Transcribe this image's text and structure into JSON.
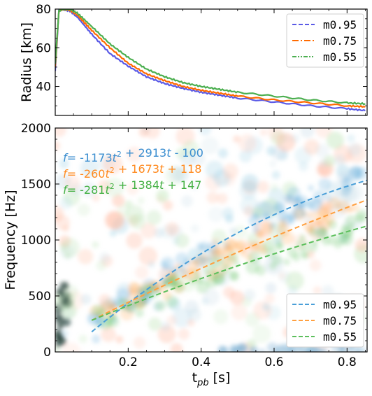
{
  "chart_data": [
    {
      "type": "line",
      "ylabel": "Radius [km]",
      "xlim": [
        0.0,
        0.855
      ],
      "ylim": [
        25,
        80
      ],
      "yticks": [
        40,
        60,
        80
      ],
      "xticks": [
        0.2,
        0.4,
        0.6,
        0.8
      ],
      "show_xtick_labels": false,
      "legend_position": "top-right",
      "series": [
        {
          "name": "m0.95",
          "color": "#5a5ae6",
          "dash": "6,3",
          "x": [
            0.0,
            0.01,
            0.02,
            0.04,
            0.06,
            0.1,
            0.15,
            0.2,
            0.25,
            0.3,
            0.35,
            0.4,
            0.45,
            0.5,
            0.6,
            0.7,
            0.8,
            0.85
          ],
          "y": [
            48,
            79,
            80,
            79,
            76,
            67,
            57,
            50.5,
            45,
            41.5,
            39,
            37,
            35.5,
            34,
            32,
            30,
            28.5,
            27.5
          ]
        },
        {
          "name": "m0.75",
          "color": "#ff6a00",
          "dash": "9,3,2,3",
          "x": [
            0.0,
            0.01,
            0.02,
            0.04,
            0.06,
            0.1,
            0.15,
            0.2,
            0.25,
            0.3,
            0.35,
            0.4,
            0.45,
            0.5,
            0.6,
            0.7,
            0.8,
            0.85
          ],
          "y": [
            50,
            79,
            80,
            79.5,
            77,
            69,
            60,
            52,
            46.5,
            43,
            40,
            38,
            36.5,
            35,
            33,
            31.5,
            30,
            29.5
          ]
        },
        {
          "name": "m0.55",
          "color": "#4caf50",
          "dash": "6,2,2,2,2,2",
          "x": [
            0.0,
            0.01,
            0.02,
            0.04,
            0.06,
            0.1,
            0.15,
            0.2,
            0.25,
            0.3,
            0.35,
            0.4,
            0.45,
            0.5,
            0.6,
            0.7,
            0.8,
            0.85
          ],
          "y": [
            52,
            79,
            80,
            80,
            78,
            71,
            62,
            55,
            49,
            45,
            42,
            40,
            38.5,
            37,
            35,
            33,
            31.5,
            31
          ]
        }
      ]
    },
    {
      "type": "line",
      "xlabel": "t_pb [s]",
      "ylabel": "Frequency [Hz]",
      "xlim": [
        0.0,
        0.855
      ],
      "ylim": [
        0,
        2000
      ],
      "yticks": [
        0,
        500,
        1000,
        1500,
        2000
      ],
      "xticks": [
        0.2,
        0.4,
        0.6,
        0.8
      ],
      "legend_position": "lower-right",
      "annotations": [
        {
          "text": "f= -1173t² + 2913t - 100",
          "color": "#3b8ed0"
        },
        {
          "text": "f= -260t² + 1673t + 118",
          "color": "#ff8a1f"
        },
        {
          "text": "f= -281t² + 1384t + 147",
          "color": "#43b043"
        }
      ],
      "series": [
        {
          "name": "m0.95",
          "color": "#4a9fd8",
          "coeffs": [
            -1173,
            2913,
            -100
          ],
          "x_range": [
            0.1,
            0.855
          ]
        },
        {
          "name": "m0.75",
          "color": "#ffa040",
          "coeffs": [
            -260,
            1673,
            118
          ],
          "x_range": [
            0.1,
            0.855
          ]
        },
        {
          "name": "m0.55",
          "color": "#5cbf5c",
          "coeffs": [
            -281,
            1384,
            147
          ],
          "x_range": [
            0.1,
            0.855
          ]
        }
      ]
    }
  ]
}
